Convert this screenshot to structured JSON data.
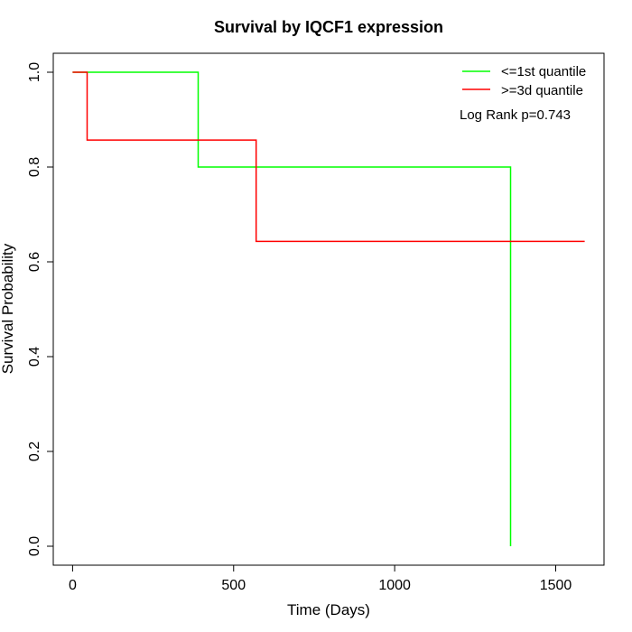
{
  "chart_data": {
    "type": "line",
    "title": "Survival by IQCF1 expression",
    "xlabel": "Time (Days)",
    "ylabel": "Survival Probability",
    "xlim": [
      -60,
      1650
    ],
    "ylim": [
      -0.04,
      1.04
    ],
    "x_ticks": [
      0,
      500,
      1000,
      1500
    ],
    "y_ticks": [
      0.0,
      0.2,
      0.4,
      0.6,
      0.8,
      1.0
    ],
    "x_tick_labels": [
      "0",
      "500",
      "1000",
      "1500"
    ],
    "y_tick_labels": [
      "0.0",
      "0.2",
      "0.4",
      "0.6",
      "0.8",
      "1.0"
    ],
    "grid": false,
    "legend_position": "top-right",
    "series": [
      {
        "name": "<=1st quantile",
        "color": "#00ff00",
        "step_points": [
          [
            0,
            1.0
          ],
          [
            390,
            1.0
          ],
          [
            390,
            0.8
          ],
          [
            1360,
            0.8
          ],
          [
            1360,
            0.0
          ]
        ]
      },
      {
        "name": ">=3d quantile",
        "color": "#ff0000",
        "step_points": [
          [
            0,
            1.0
          ],
          [
            45,
            1.0
          ],
          [
            45,
            0.857
          ],
          [
            570,
            0.857
          ],
          [
            570,
            0.643
          ],
          [
            1590,
            0.643
          ]
        ]
      }
    ],
    "annotation": "Log Rank p=0.743"
  }
}
